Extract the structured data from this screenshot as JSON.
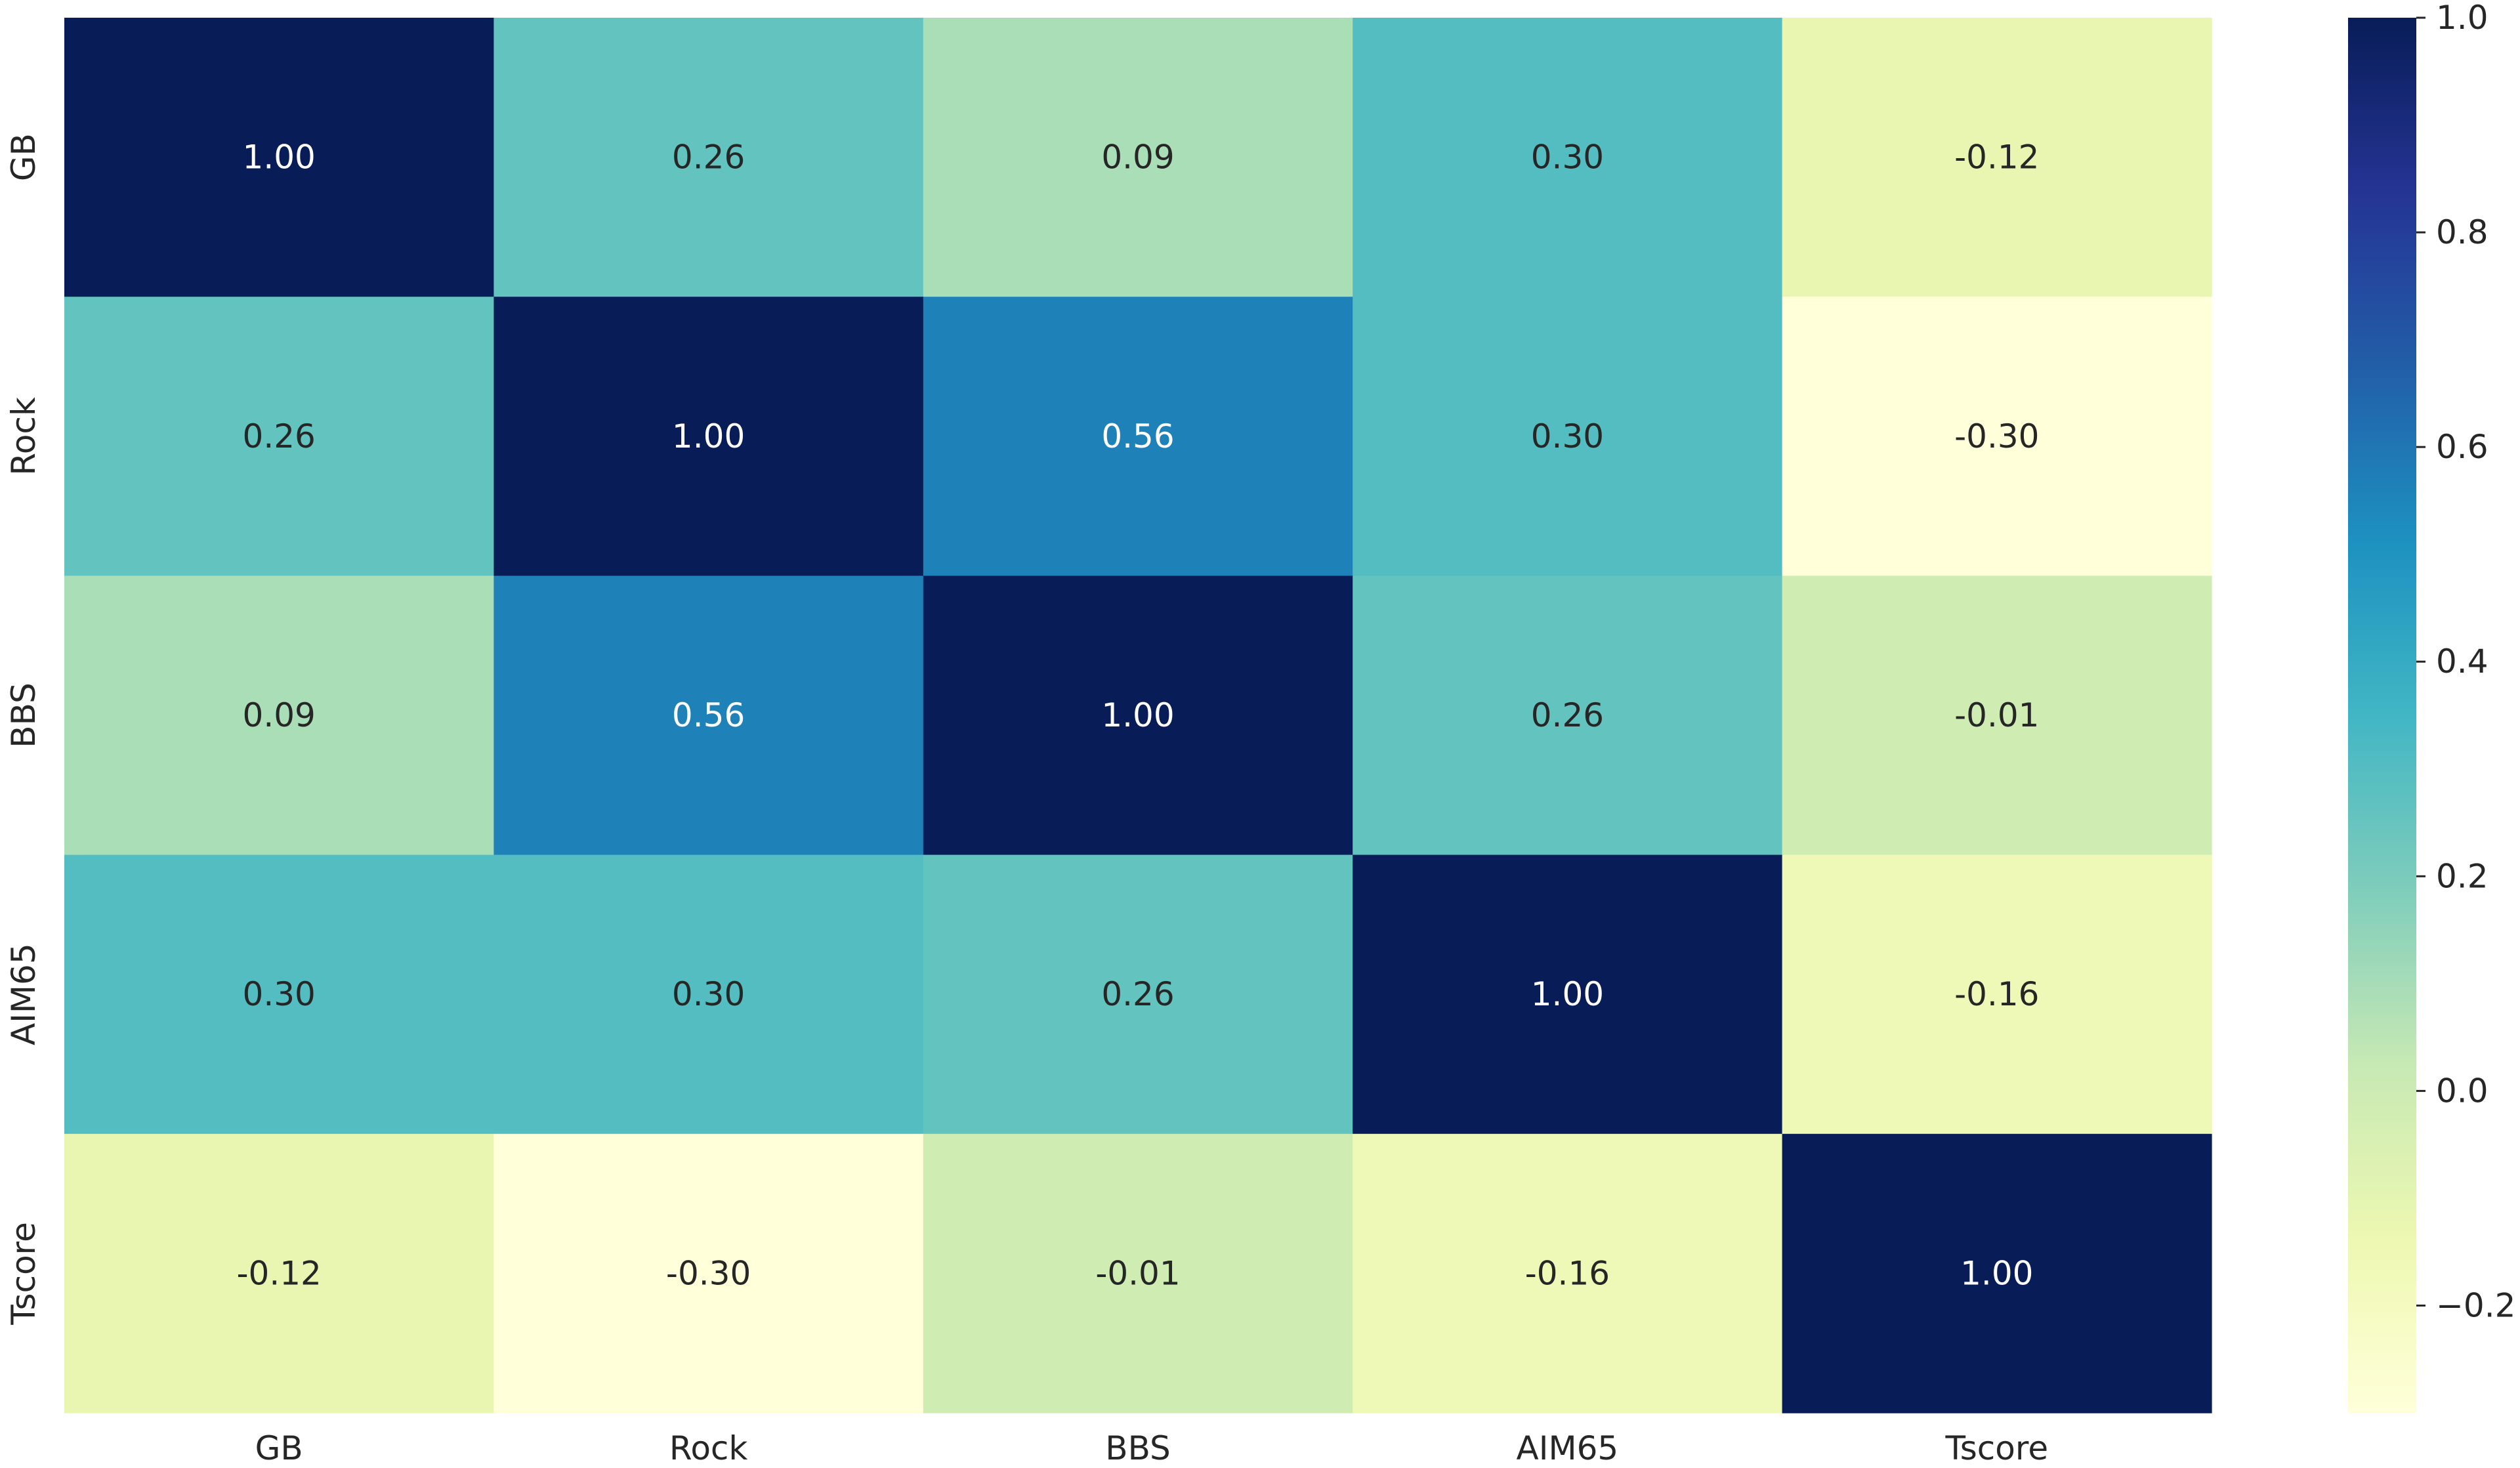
{
  "chart_data": {
    "type": "heatmap",
    "title": "",
    "xlabel": "",
    "ylabel": "",
    "x_categories": [
      "GB",
      "Rock",
      "BBS",
      "AIM65",
      "Tscore"
    ],
    "y_categories": [
      "GB",
      "Rock",
      "BBS",
      "AIM65",
      "Tscore"
    ],
    "values": [
      [
        1.0,
        0.26,
        0.09,
        0.3,
        -0.12
      ],
      [
        0.26,
        1.0,
        0.56,
        0.3,
        -0.3
      ],
      [
        0.09,
        0.56,
        1.0,
        0.26,
        -0.01
      ],
      [
        0.3,
        0.3,
        0.26,
        1.0,
        -0.16
      ],
      [
        -0.12,
        -0.3,
        -0.01,
        -0.16,
        1.0
      ]
    ],
    "annotations": [
      [
        "1.00",
        "0.26",
        "0.09",
        "0.30",
        "-0.12"
      ],
      [
        "0.26",
        "1.00",
        "0.56",
        "0.30",
        "-0.30"
      ],
      [
        "0.09",
        "0.56",
        "1.00",
        "0.26",
        "-0.01"
      ],
      [
        "0.30",
        "0.30",
        "0.26",
        "1.00",
        "-0.16"
      ],
      [
        "-0.12",
        "-0.30",
        "-0.01",
        "-0.16",
        "1.00"
      ]
    ],
    "colormap": "YlGnBu",
    "color_range": [
      -0.3,
      1.0
    ],
    "colorbar": {
      "ticks": [
        1.0,
        0.8,
        0.6,
        0.4,
        0.2,
        0.0,
        -0.2
      ],
      "tick_labels": [
        "1.0",
        "0.8",
        "0.6",
        "0.4",
        "0.2",
        "0.0",
        "−0.2"
      ]
    },
    "colorbar_placement": "right"
  }
}
